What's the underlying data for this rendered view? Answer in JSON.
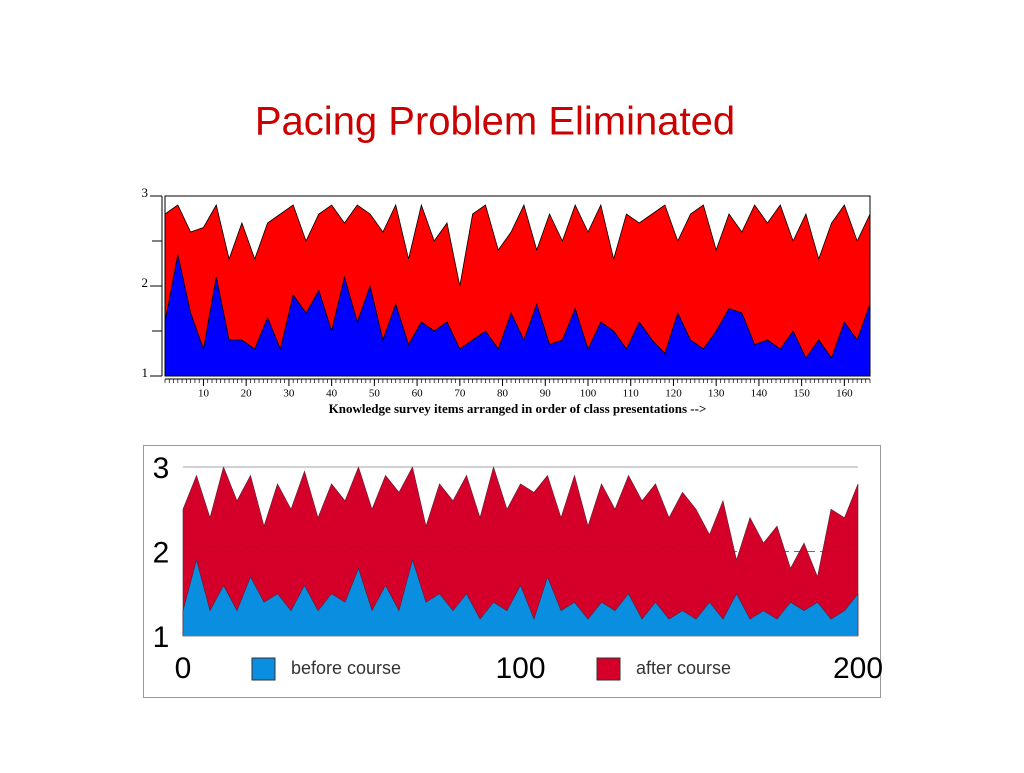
{
  "slide_title": "Pacing Problem Eliminated",
  "chart_data": [
    {
      "type": "area",
      "x_label": "Knowledge survey items arranged in order of class presentations -->",
      "x": [
        1,
        4,
        7,
        10,
        13,
        16,
        19,
        22,
        25,
        28,
        31,
        34,
        37,
        40,
        43,
        46,
        49,
        52,
        55,
        58,
        61,
        64,
        67,
        70,
        73,
        76,
        79,
        82,
        85,
        88,
        91,
        94,
        97,
        100,
        103,
        106,
        109,
        112,
        115,
        118,
        121,
        124,
        127,
        130,
        133,
        136,
        139,
        142,
        145,
        148,
        151,
        154,
        157,
        160,
        163,
        166
      ],
      "series": [
        {
          "color": "#ff0000",
          "values": [
            2.8,
            2.9,
            2.6,
            2.65,
            2.9,
            2.3,
            2.7,
            2.3,
            2.7,
            2.8,
            2.9,
            2.5,
            2.8,
            2.9,
            2.7,
            2.9,
            2.8,
            2.6,
            2.9,
            2.3,
            2.9,
            2.5,
            2.7,
            2.0,
            2.8,
            2.9,
            2.4,
            2.6,
            2.9,
            2.4,
            2.8,
            2.5,
            2.9,
            2.6,
            2.9,
            2.3,
            2.8,
            2.7,
            2.8,
            2.9,
            2.5,
            2.8,
            2.9,
            2.4,
            2.8,
            2.6,
            2.9,
            2.7,
            2.9,
            2.5,
            2.8,
            2.3,
            2.7,
            2.9,
            2.5,
            2.8
          ]
        },
        {
          "color": "#0000ff",
          "values": [
            1.6,
            2.35,
            1.7,
            1.3,
            2.1,
            1.4,
            1.4,
            1.3,
            1.65,
            1.3,
            1.9,
            1.7,
            1.95,
            1.5,
            2.1,
            1.6,
            2.0,
            1.4,
            1.8,
            1.35,
            1.6,
            1.5,
            1.6,
            1.3,
            1.4,
            1.5,
            1.3,
            1.7,
            1.4,
            1.8,
            1.35,
            1.4,
            1.75,
            1.3,
            1.6,
            1.5,
            1.3,
            1.6,
            1.4,
            1.25,
            1.7,
            1.4,
            1.3,
            1.5,
            1.75,
            1.7,
            1.35,
            1.4,
            1.3,
            1.5,
            1.2,
            1.4,
            1.2,
            1.6,
            1.4,
            1.8
          ]
        }
      ],
      "xlim": [
        1,
        166
      ],
      "xticks": [
        10,
        20,
        30,
        40,
        50,
        60,
        70,
        80,
        90,
        100,
        110,
        120,
        130,
        140,
        150,
        160
      ],
      "ylim": [
        1,
        3
      ],
      "yticks": [
        1,
        2,
        3
      ],
      "yminor_ticks": [
        1.5,
        2.5
      ]
    },
    {
      "type": "area",
      "x": [
        0,
        4,
        8,
        12,
        16,
        20,
        24,
        28,
        32,
        36,
        40,
        44,
        48,
        52,
        56,
        60,
        64,
        68,
        72,
        76,
        80,
        84,
        88,
        92,
        96,
        100,
        104,
        108,
        112,
        116,
        120,
        124,
        128,
        132,
        136,
        140,
        144,
        148,
        152,
        156,
        160,
        164,
        168,
        172,
        176,
        180,
        184,
        188,
        192,
        196,
        200
      ],
      "series": [
        {
          "name": "after course",
          "color": "#d4002a",
          "values": [
            2.5,
            2.9,
            2.4,
            3.0,
            2.6,
            2.9,
            2.3,
            2.8,
            2.5,
            2.95,
            2.4,
            2.8,
            2.6,
            3.0,
            2.5,
            2.9,
            2.7,
            3.0,
            2.3,
            2.8,
            2.6,
            2.9,
            2.4,
            3.0,
            2.5,
            2.8,
            2.7,
            2.9,
            2.4,
            2.9,
            2.3,
            2.8,
            2.5,
            2.9,
            2.6,
            2.8,
            2.4,
            2.7,
            2.5,
            2.2,
            2.6,
            1.9,
            2.4,
            2.1,
            2.3,
            1.8,
            2.1,
            1.7,
            2.5,
            2.4,
            2.8
          ]
        },
        {
          "name": "before course",
          "color": "#0a8ee0",
          "values": [
            1.3,
            1.9,
            1.3,
            1.6,
            1.3,
            1.7,
            1.4,
            1.5,
            1.3,
            1.6,
            1.3,
            1.5,
            1.4,
            1.8,
            1.3,
            1.6,
            1.3,
            1.9,
            1.4,
            1.5,
            1.3,
            1.5,
            1.2,
            1.4,
            1.3,
            1.6,
            1.2,
            1.7,
            1.3,
            1.4,
            1.2,
            1.4,
            1.3,
            1.5,
            1.2,
            1.4,
            1.2,
            1.3,
            1.2,
            1.4,
            1.2,
            1.5,
            1.2,
            1.3,
            1.2,
            1.4,
            1.3,
            1.4,
            1.2,
            1.3,
            1.5
          ]
        }
      ],
      "xlim": [
        0,
        200
      ],
      "xticks": [
        0,
        100,
        200
      ],
      "ylim": [
        1,
        3
      ],
      "yticks": [
        1,
        2,
        3
      ],
      "grid": "dashed"
    }
  ]
}
